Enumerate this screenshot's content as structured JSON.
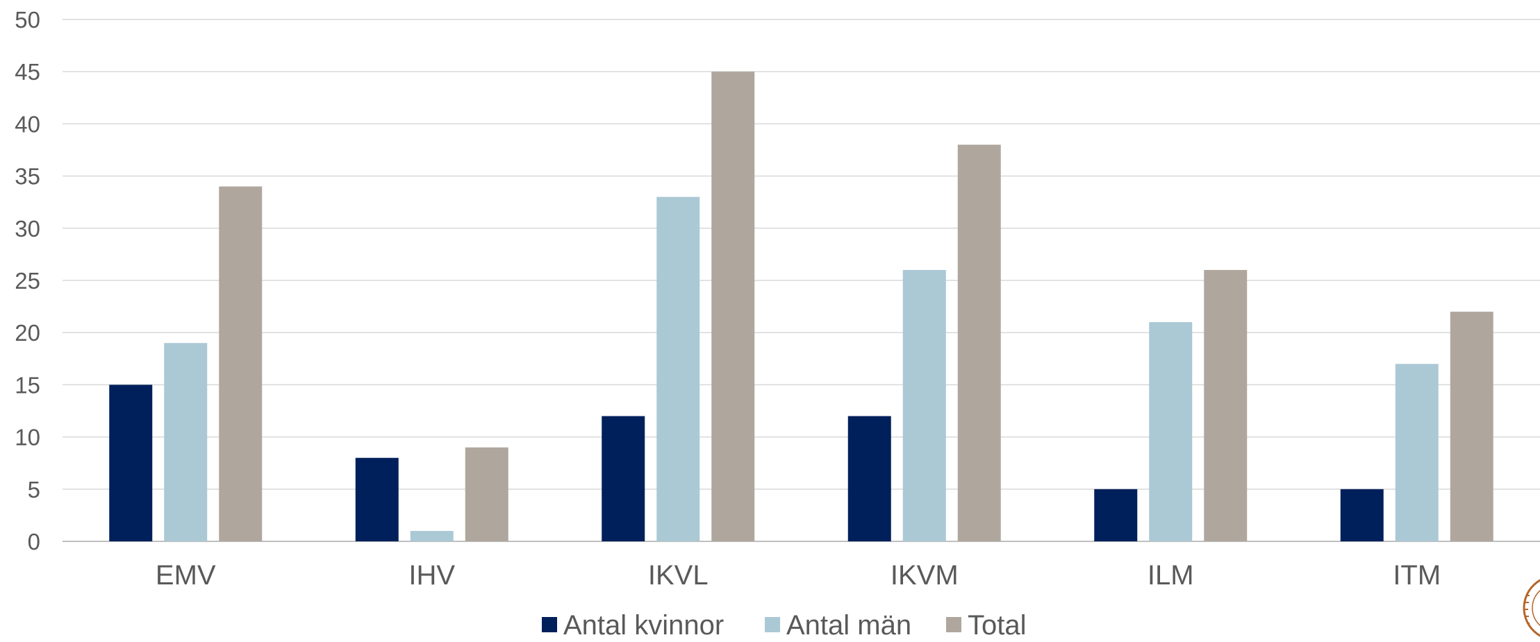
{
  "chart_data": {
    "type": "bar",
    "title": "",
    "xlabel": "",
    "ylabel": "",
    "categories": [
      "EMV",
      "IHV",
      "IKVL",
      "IKVM",
      "ILM",
      "ITM"
    ],
    "series": [
      {
        "name": "Antal kvinnor",
        "color": "#00205b",
        "values": [
          15,
          8,
          12,
          12,
          5,
          5
        ]
      },
      {
        "name": "Antal män",
        "color": "#abc8d5",
        "values": [
          19,
          1,
          33,
          26,
          21,
          17
        ]
      },
      {
        "name": "Total",
        "color": "#afa79d",
        "values": [
          34,
          9,
          45,
          38,
          26,
          22
        ]
      }
    ],
    "ylim": [
      0,
      50
    ],
    "yticks": [
      0,
      5,
      10,
      15,
      20,
      25,
      30,
      35,
      40,
      45,
      50
    ],
    "grid": true,
    "legend_position": "bottom-center"
  },
  "colors": {
    "gridline": "#d9d9d9",
    "axis": "#bfbfbf",
    "text": "#595959",
    "seal": "#b5652c"
  },
  "decor": {
    "seal_icon": "university-seal-icon"
  }
}
